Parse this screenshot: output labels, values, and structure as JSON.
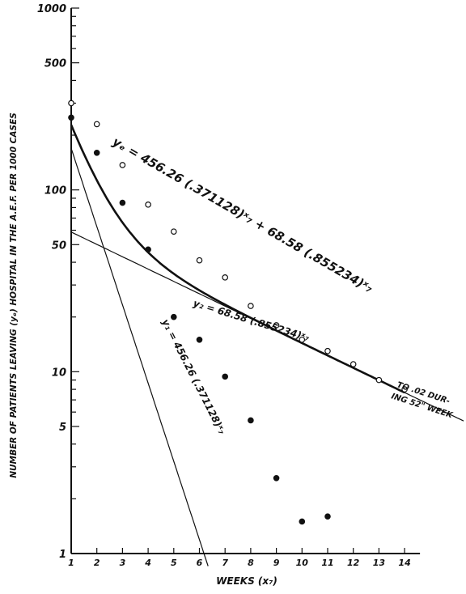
{
  "chart_data": {
    "type": "scatter",
    "scale": {
      "y": "log"
    },
    "xlabel": "WEEKS (x₇)",
    "ylabel": "NUMBER OF PATIENTS LEAVING (yₑ) HOSPITAL IN THE A.E.F. PER 1000 CASES",
    "xlim": [
      1,
      16.3
    ],
    "ylim": [
      1,
      1000
    ],
    "x_ticks": [
      "1",
      "2",
      "3",
      "4",
      "5",
      "6",
      "7",
      "8",
      "9",
      "10",
      "11",
      "12",
      "13",
      "14"
    ],
    "y_ticks": [
      {
        "value": 1,
        "label": "1"
      },
      {
        "value": 5,
        "label": "5"
      },
      {
        "value": 10,
        "label": "10"
      },
      {
        "value": 50,
        "label": "50"
      },
      {
        "value": 100,
        "label": "100"
      },
      {
        "value": 500,
        "label": "500"
      },
      {
        "value": 1000,
        "label": "1000"
      }
    ],
    "grid": false,
    "series": [
      {
        "marker": "filled",
        "x": [
          1,
          2,
          3,
          4,
          5,
          6,
          7,
          8,
          9,
          10,
          11
        ],
        "y": [
          250,
          160,
          85,
          47,
          20,
          15,
          9.4,
          5.4,
          2.6,
          1.5,
          1.6
        ]
      },
      {
        "marker": "open",
        "x": [
          1,
          2,
          3,
          4,
          5,
          6,
          7,
          8,
          9,
          10,
          11,
          12,
          13,
          14
        ],
        "y": [
          300,
          230,
          137,
          83,
          59,
          41,
          33,
          23,
          18,
          15,
          13,
          11,
          9,
          8
        ]
      }
    ],
    "curves": [
      {
        "id": "y1",
        "a": 456.26,
        "b": 0.371128,
        "b2": null,
        "a2": null,
        "x_range": [
          1,
          11.5
        ]
      },
      {
        "id": "y2",
        "a": 68.58,
        "b": 0.855234,
        "b2": null,
        "a2": null,
        "x_range": [
          1,
          16.3
        ]
      },
      {
        "id": "yt",
        "a": 456.26,
        "b": 0.371128,
        "a2": 68.58,
        "b2": 0.855234,
        "x_range": [
          1,
          14
        ]
      }
    ],
    "annotations": {
      "eq_total": "yₑ = 456.26 (.371128)ˣ₇ + 68.58 (.855234)ˣ₇",
      "eq_y2": "y₂ = 68.58 (.855234)ˣ₇",
      "eq_y1": "y₁ = 456.26 (.371128)ˣ₇",
      "note_line1": "TO .02 DUR-",
      "note_line2": "ING 52\" WEEK"
    }
  }
}
